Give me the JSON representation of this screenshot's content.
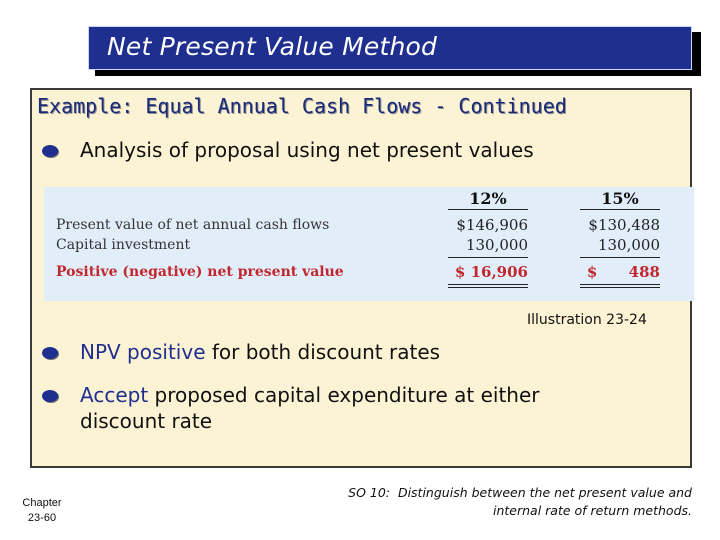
{
  "title": "Net Present Value Method",
  "example_heading": "Example: Equal Annual Cash Flows - Continued",
  "bullets": [
    {
      "text": "Analysis of proposal using net present values"
    },
    {
      "highlight": "NPV positive",
      "rest": " for both discount rates"
    },
    {
      "highlight": "Accept",
      "rest": " proposed capital expenditure at either discount rate"
    }
  ],
  "illustration": {
    "columns": [
      "12%",
      "15%"
    ],
    "rows": [
      {
        "label": "Present value of net annual cash flows",
        "values": [
          "$146,906",
          "$130,488"
        ]
      },
      {
        "label": "Capital investment",
        "values": [
          "130,000",
          "130,000"
        ]
      },
      {
        "label": "Positive (negative) net present value",
        "values": [
          "$ 16,906",
          "$      488"
        ],
        "emphasis": true
      }
    ],
    "caption": "Illustration 23-24"
  },
  "footer": {
    "chapter_line1": "Chapter",
    "chapter_line2": "23-60",
    "so_line1": "SO 10:  Distinguish between the net present value and",
    "so_line2": "internal rate of return methods."
  },
  "colors": {
    "title_bg": "#1f2f8f",
    "panel_bg": "#fbf3d4",
    "table_bg": "#e1eefa",
    "accent_red": "#c1272d",
    "bullet": "#1f2f8f"
  }
}
